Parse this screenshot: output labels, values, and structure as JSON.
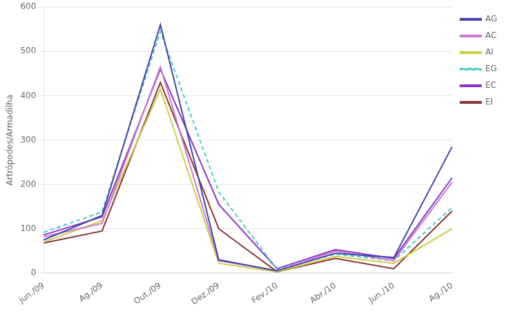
{
  "chart_data": {
    "type": "line",
    "categories": [
      "jun./09",
      "Ag./09",
      "Out./09",
      "Dez./09",
      "Fev./10",
      "Abr./10",
      "Jun./10",
      "Ag./10"
    ],
    "series": [
      {
        "name": "AG",
        "color": "#4444aa",
        "line_style": "solid",
        "values": [
          75,
          130,
          560,
          30,
          5,
          45,
          35,
          285
        ]
      },
      {
        "name": "AC",
        "color": "#cc77cc",
        "line_style": "solid",
        "values": [
          82,
          112,
          465,
          28,
          5,
          50,
          28,
          205
        ]
      },
      {
        "name": "AI",
        "color": "#cccc44",
        "line_style": "solid",
        "values": [
          70,
          118,
          415,
          22,
          3,
          38,
          22,
          100
        ]
      },
      {
        "name": "EG",
        "color": "#44cccc",
        "line_style": "dashed",
        "values": [
          92,
          138,
          545,
          183,
          8,
          43,
          28,
          148
        ]
      },
      {
        "name": "EC",
        "color": "#8833cc",
        "line_style": "solid",
        "values": [
          86,
          127,
          460,
          155,
          10,
          53,
          33,
          215
        ]
      },
      {
        "name": "EI",
        "color": "#883333",
        "line_style": "solid",
        "values": [
          68,
          95,
          430,
          100,
          3,
          33,
          10,
          140
        ]
      }
    ],
    "ylabel": "Artrópodes/Armadilha",
    "ylim": [
      0,
      600
    ],
    "yticks": [
      0,
      100,
      200,
      300,
      400,
      500,
      600
    ],
    "grid": true,
    "legend": "right"
  }
}
